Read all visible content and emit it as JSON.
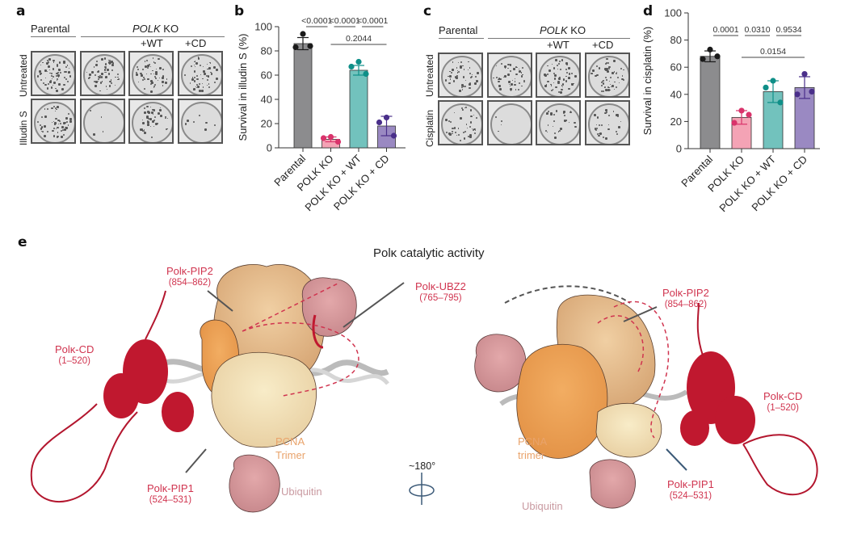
{
  "panels": {
    "a": {
      "letter": "a",
      "col_headers": {
        "parental": "Parental",
        "polk_italic": "POLK",
        "ko": " KO",
        "wt": "+WT",
        "cd": "+CD"
      },
      "row_labels": [
        "Untreated",
        "Illudin S"
      ],
      "dish_density": [
        [
          0.9,
          0.9,
          0.8,
          0.8
        ],
        [
          0.8,
          0.05,
          0.6,
          0.1
        ]
      ]
    },
    "b": {
      "letter": "b"
    },
    "c": {
      "letter": "c",
      "col_headers": {
        "parental": "Parental",
        "polk_italic": "POLK",
        "ko": " KO",
        "wt": "+WT",
        "cd": "+CD"
      },
      "row_labels": [
        "Untreated",
        "Cisplatin"
      ],
      "dish_density": [
        [
          0.7,
          0.7,
          0.8,
          0.8
        ],
        [
          0.6,
          0.05,
          0.4,
          0.4
        ]
      ]
    },
    "d": {
      "letter": "d"
    },
    "e": {
      "letter": "e",
      "title": "Polκ catalytic activity",
      "rotation_label": "~180°",
      "left": {
        "pip2": {
          "name": "Polκ-PIP2",
          "range": "(854–862)"
        },
        "cd": {
          "name": "Polκ-CD",
          "range": "(1–520)"
        },
        "pip1": {
          "name": "Polκ-PIP1",
          "range": "(524–531)"
        },
        "pcna": [
          "PCNA",
          "Trimer"
        ],
        "ubiquitin": "Ubiquitin"
      },
      "center": {
        "ubz2": {
          "name": "Polκ-UBZ2",
          "range": "(765–795)"
        }
      },
      "right": {
        "pip2": {
          "name": "Polκ-PIP2",
          "range": "(854–862)"
        },
        "cd": {
          "name": "Polκ-CD",
          "range": "(1–520)"
        },
        "pip1": {
          "name": "Polκ-PIP1",
          "range": "(524–531)"
        },
        "pcna": [
          "PCNA",
          "trimer"
        ],
        "ubiquitin": "Ubiquitin"
      }
    }
  },
  "colors": {
    "parental": "#8c8c8e",
    "ko": "#f4a3b5",
    "wt": "#72c2bd",
    "cd": "#9a89c2",
    "parental_dot": "#1a1a1a",
    "ko_dot": "#d9336b",
    "wt_dot": "#0f8f88",
    "cd_dot": "#4a2f8a",
    "red_label": "#d0344f"
  },
  "chart_data": [
    {
      "type": "bar",
      "panel": "b",
      "ylabel": "Survival in illudin S (%)",
      "ylim": [
        0,
        100
      ],
      "yticks": [
        0,
        20,
        40,
        60,
        80,
        100
      ],
      "categories": [
        "Parental",
        "POLK KO",
        "POLK KO + WT",
        "POLK KO + CD"
      ],
      "values": [
        86,
        7,
        64,
        18
      ],
      "sd": [
        5,
        2,
        4,
        8
      ],
      "points": [
        [
          94,
          83,
          84
        ],
        [
          9,
          8,
          5
        ],
        [
          71,
          67,
          61
        ],
        [
          25,
          21,
          10
        ]
      ],
      "comparisons": [
        {
          "from": 0,
          "to": 1,
          "label": "<0.0001",
          "level": 1
        },
        {
          "from": 1,
          "to": 2,
          "label": "<0.0001",
          "level": 1
        },
        {
          "from": 2,
          "to": 3,
          "label": "<0.0001",
          "level": 1
        },
        {
          "from": 1,
          "to": 3,
          "label": "0.2044",
          "level": 0
        }
      ]
    },
    {
      "type": "bar",
      "panel": "d",
      "ylabel": "Survival in cisplatin (%)",
      "ylim": [
        0,
        100
      ],
      "yticks": [
        0,
        20,
        40,
        60,
        80,
        100
      ],
      "categories": [
        "Parental",
        "POLK KO",
        "POLK KO + WT",
        "POLK KO + CD"
      ],
      "values": [
        68,
        23,
        42,
        45
      ],
      "sd": [
        4,
        5,
        8,
        8
      ],
      "points": [
        [
          73,
          66,
          68
        ],
        [
          28,
          19,
          25
        ],
        [
          50,
          45,
          34
        ],
        [
          55,
          40,
          42
        ]
      ],
      "comparisons": [
        {
          "from": 0,
          "to": 1,
          "label": "0.0001",
          "level": 1
        },
        {
          "from": 1,
          "to": 2,
          "label": "0.0310",
          "level": 1
        },
        {
          "from": 2,
          "to": 3,
          "label": "0.9534",
          "level": 1
        },
        {
          "from": 1,
          "to": 3,
          "label": "0.0154",
          "level": 0
        }
      ]
    }
  ]
}
